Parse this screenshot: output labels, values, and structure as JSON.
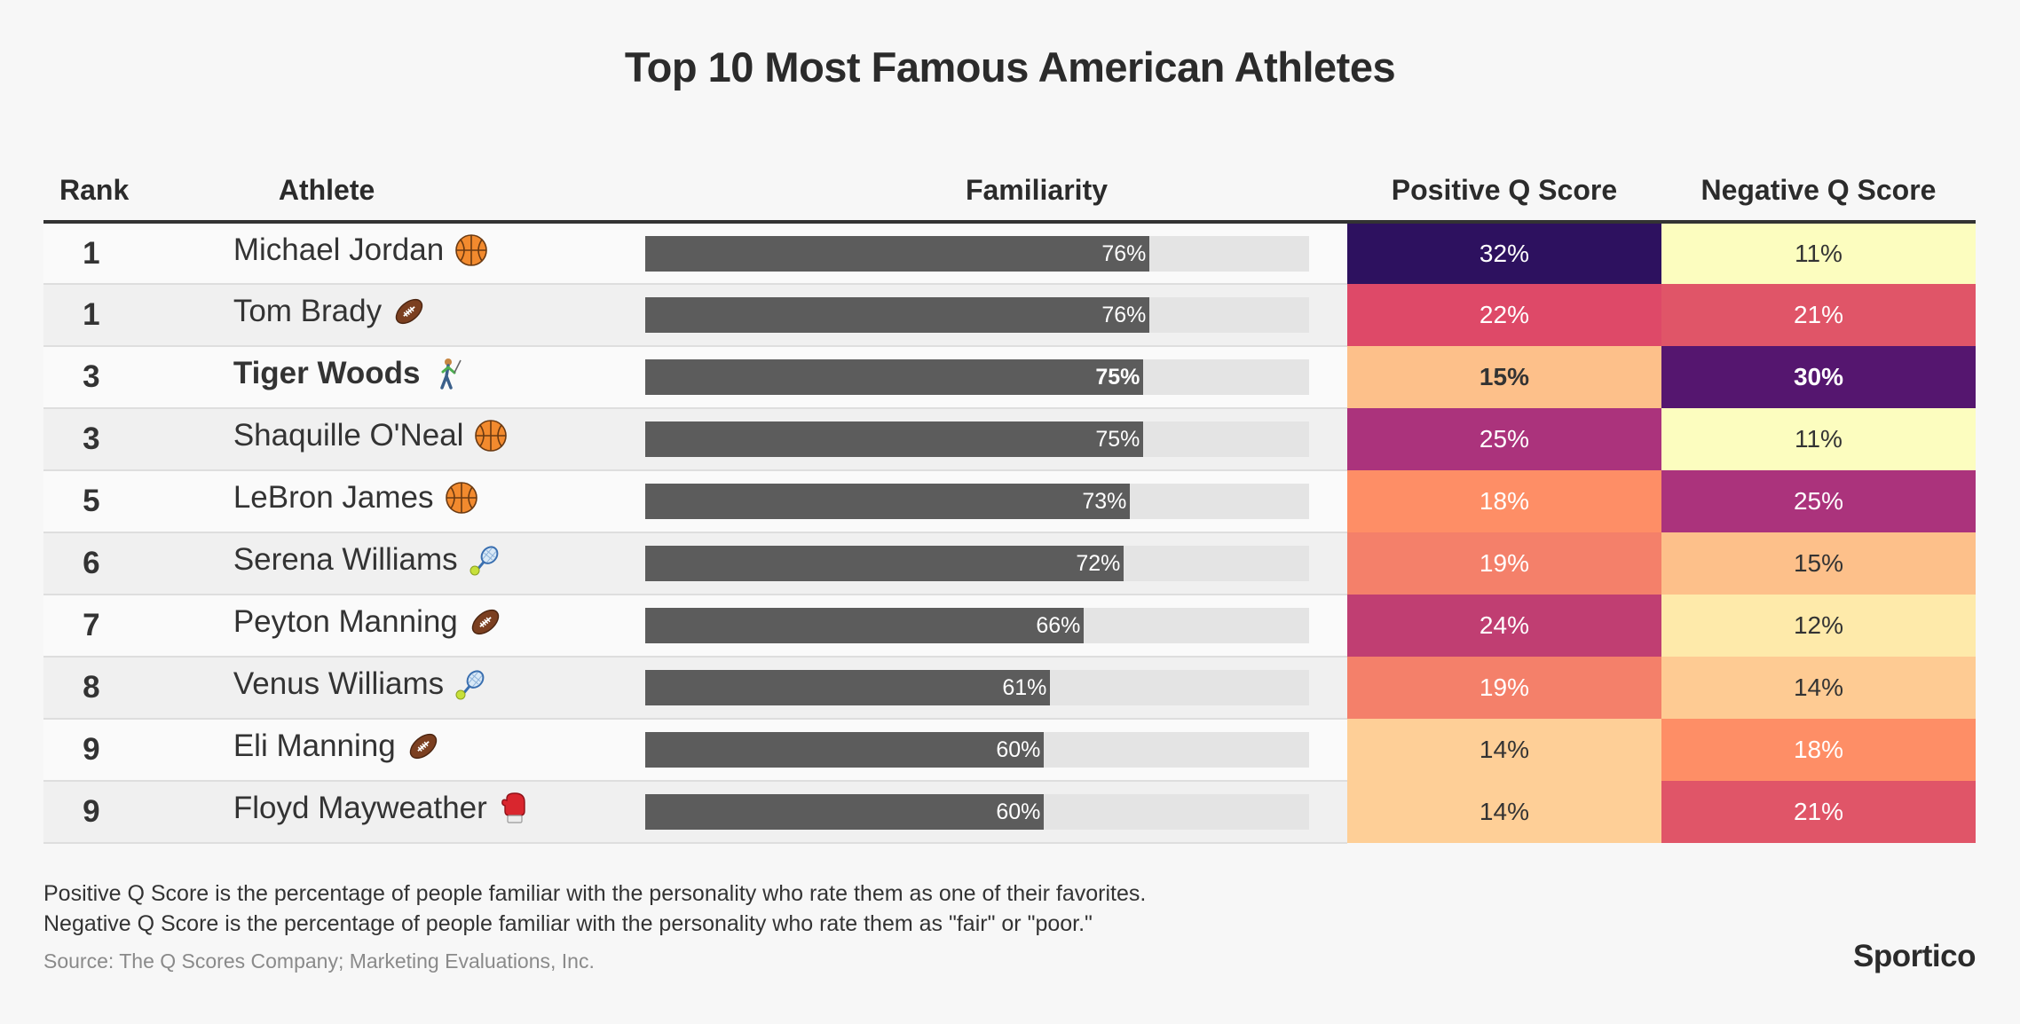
{
  "title": "Top 10 Most Famous American Athletes",
  "headers": {
    "rank": "Rank",
    "athlete": "Athlete",
    "familiarity": "Familiarity",
    "positive": "Positive Q Score",
    "negative": "Negative Q Score"
  },
  "chart_data": {
    "type": "table",
    "title": "Top 10 Most Famous American Athletes",
    "columns": [
      "Rank",
      "Athlete",
      "Familiarity",
      "Positive Q Score",
      "Negative Q Score"
    ],
    "familiarity_max": 100,
    "rows": [
      {
        "rank": "1",
        "athlete": "Michael Jordan",
        "sport_icon": "basketball-icon",
        "familiarity": 76,
        "familiarity_label": "76%",
        "positive": "32%",
        "positive_color": "#2d115f",
        "positive_text_color": "#ffffff",
        "negative": "11%",
        "negative_color": "#fcfdbf",
        "negative_text_color": "#333333",
        "highlighted": false
      },
      {
        "rank": "1",
        "athlete": "Tom Brady",
        "sport_icon": "football-icon",
        "familiarity": 76,
        "familiarity_label": "76%",
        "positive": "22%",
        "positive_color": "#de4968",
        "positive_text_color": "#ffffff",
        "negative": "21%",
        "negative_color": "#e05568",
        "negative_text_color": "#ffffff",
        "highlighted": false
      },
      {
        "rank": "3",
        "athlete": "Tiger Woods",
        "sport_icon": "golfer-icon",
        "familiarity": 75,
        "familiarity_label": "75%",
        "positive": "15%",
        "positive_color": "#fdc08a",
        "positive_text_color": "#333333",
        "negative": "30%",
        "negative_color": "#55166f",
        "negative_text_color": "#ffffff",
        "highlighted": true
      },
      {
        "rank": "3",
        "athlete": "Shaquille O'Neal",
        "sport_icon": "basketball-icon",
        "familiarity": 75,
        "familiarity_label": "75%",
        "positive": "25%",
        "positive_color": "#ab337c",
        "positive_text_color": "#ffffff",
        "negative": "11%",
        "negative_color": "#fcfdbf",
        "negative_text_color": "#333333",
        "highlighted": false
      },
      {
        "rank": "5",
        "athlete": "LeBron James",
        "sport_icon": "basketball-icon",
        "familiarity": 73,
        "familiarity_label": "73%",
        "positive": "18%",
        "positive_color": "#fe8e66",
        "positive_text_color": "#ffffff",
        "negative": "25%",
        "negative_color": "#ab337c",
        "negative_text_color": "#ffffff",
        "highlighted": false
      },
      {
        "rank": "6",
        "athlete": "Serena Williams",
        "sport_icon": "tennis-icon",
        "familiarity": 72,
        "familiarity_label": "72%",
        "positive": "19%",
        "positive_color": "#f4806a",
        "positive_text_color": "#ffffff",
        "negative": "15%",
        "negative_color": "#fdc08a",
        "negative_text_color": "#333333",
        "highlighted": false
      },
      {
        "rank": "7",
        "athlete": "Peyton Manning",
        "sport_icon": "football-icon",
        "familiarity": 66,
        "familiarity_label": "66%",
        "positive": "24%",
        "positive_color": "#c03e72",
        "positive_text_color": "#ffffff",
        "negative": "12%",
        "negative_color": "#feeaaa",
        "negative_text_color": "#333333",
        "highlighted": false
      },
      {
        "rank": "8",
        "athlete": "Venus Williams",
        "sport_icon": "tennis-icon",
        "familiarity": 61,
        "familiarity_label": "61%",
        "positive": "19%",
        "positive_color": "#f4806a",
        "positive_text_color": "#ffffff",
        "negative": "14%",
        "negative_color": "#fecb93",
        "negative_text_color": "#333333",
        "highlighted": false
      },
      {
        "rank": "9",
        "athlete": "Eli Manning",
        "sport_icon": "football-icon",
        "familiarity": 60,
        "familiarity_label": "60%",
        "positive": "14%",
        "positive_color": "#fecf97",
        "positive_text_color": "#333333",
        "negative": "18%",
        "negative_color": "#fe8e66",
        "negative_text_color": "#ffffff",
        "highlighted": false
      },
      {
        "rank": "9",
        "athlete": "Floyd Mayweather",
        "sport_icon": "boxing-glove-icon",
        "familiarity": 60,
        "familiarity_label": "60%",
        "positive": "14%",
        "positive_color": "#fecf97",
        "positive_text_color": "#333333",
        "negative": "21%",
        "negative_color": "#e05568",
        "negative_text_color": "#ffffff",
        "highlighted": false
      }
    ]
  },
  "notes": {
    "line1": "Positive Q Score is the percentage of people familiar with the personality who rate them as one of their favorites.",
    "line2": "Negative Q Score is the percentage of people familiar with the personality who rate them as \"fair\" or \"poor.\""
  },
  "source": "Source: The Q Scores Company; Marketing Evaluations, Inc.",
  "brand": "Sportico"
}
